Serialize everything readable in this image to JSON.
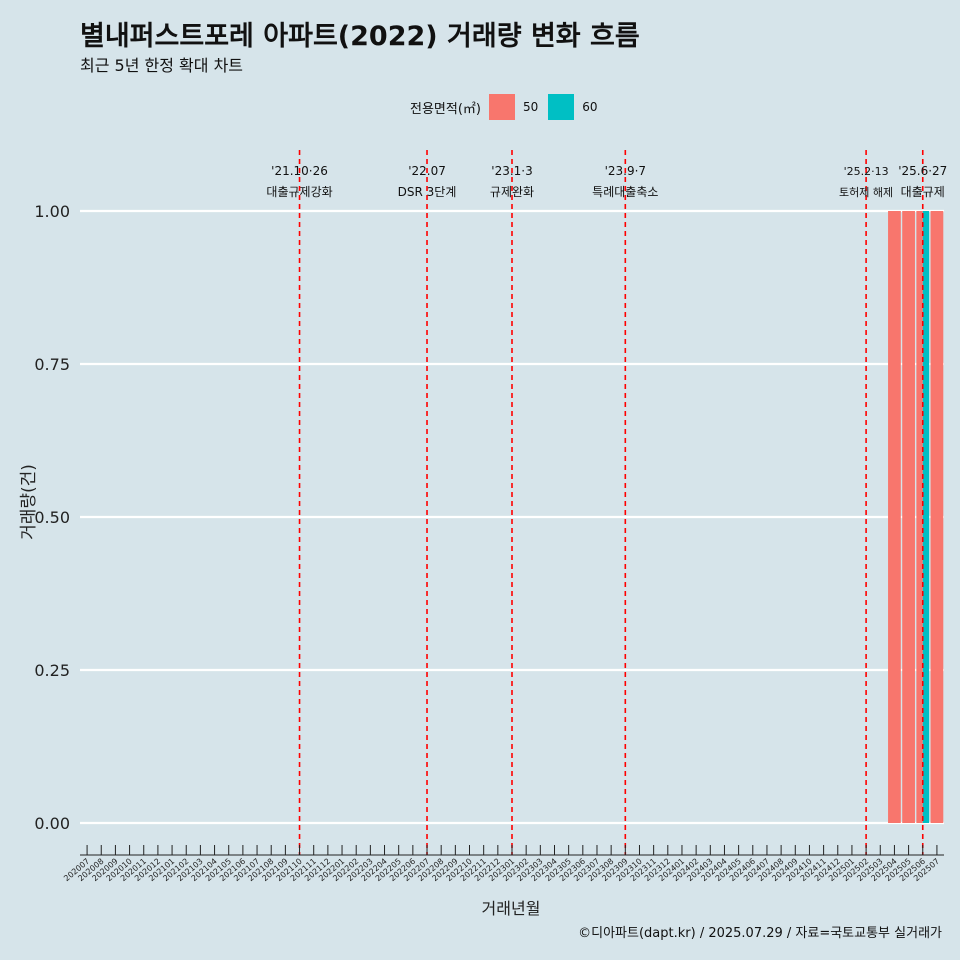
{
  "title": "별내퍼스트포레 아파트(2022) 거래량 변화 흐름",
  "subtitle": "최근 5년 한정 확대 차트",
  "caption": "©디아파트(dapt.kr) / 2025.07.29 / 자료=국토교통부 실거래가",
  "chart_data": {
    "type": "bar",
    "title": "별내퍼스트포레 아파트(2022) 거래량 변화 흐름",
    "subtitle": "최근 5년 한정 확대 차트",
    "xlabel": "거래년월",
    "ylabel": "거래량(건)",
    "ylim": [
      0,
      1
    ],
    "yticks": [
      0,
      0.25,
      0.5,
      0.75,
      1
    ],
    "ytick_labels": [
      "0.00",
      "0.25",
      "0.50",
      "0.75",
      "1.00"
    ],
    "legend_title": "전용면적(㎡)",
    "legend_position": "top",
    "grid": "horizontal major",
    "categories": [
      "202007",
      "202008",
      "202009",
      "202010",
      "202011",
      "202012",
      "202101",
      "202102",
      "202103",
      "202104",
      "202105",
      "202106",
      "202107",
      "202108",
      "202109",
      "202110",
      "202111",
      "202112",
      "202201",
      "202202",
      "202203",
      "202204",
      "202205",
      "202206",
      "202207",
      "202208",
      "202209",
      "202210",
      "202211",
      "202212",
      "202301",
      "202302",
      "202303",
      "202304",
      "202305",
      "202306",
      "202307",
      "202308",
      "202309",
      "202310",
      "202311",
      "202312",
      "202401",
      "202402",
      "202403",
      "202404",
      "202405",
      "202406",
      "202407",
      "202408",
      "202409",
      "202410",
      "202411",
      "202412",
      "202501",
      "202502",
      "202503",
      "202504",
      "202505",
      "202506",
      "202507"
    ],
    "series": [
      {
        "name": "50",
        "color": "#f8766d",
        "points": [
          {
            "x": "202504",
            "y": 1
          },
          {
            "x": "202505",
            "y": 1
          },
          {
            "x": "202506",
            "y": 1
          },
          {
            "x": "202507",
            "y": 1
          }
        ]
      },
      {
        "name": "60",
        "color": "#00bfc4",
        "points": [
          {
            "x": "202506",
            "y": 1
          }
        ]
      }
    ],
    "events": [
      {
        "date": "'21.10·26",
        "label": "대출규제강화",
        "x": "202110"
      },
      {
        "date": "'22.07",
        "label": "DSR 3단계",
        "x": "202207"
      },
      {
        "date": "'23.1·3",
        "label": "규제완화",
        "x": "202301"
      },
      {
        "date": "'23.9·7",
        "label": "특례대출축소",
        "x": "202309"
      },
      {
        "date": "'25.2·13",
        "label": "토허제 해제",
        "x": "202502"
      },
      {
        "date": "'25.6·27",
        "label": "대출규제",
        "x": "202506"
      }
    ],
    "event_line_color": "#ff0000"
  }
}
